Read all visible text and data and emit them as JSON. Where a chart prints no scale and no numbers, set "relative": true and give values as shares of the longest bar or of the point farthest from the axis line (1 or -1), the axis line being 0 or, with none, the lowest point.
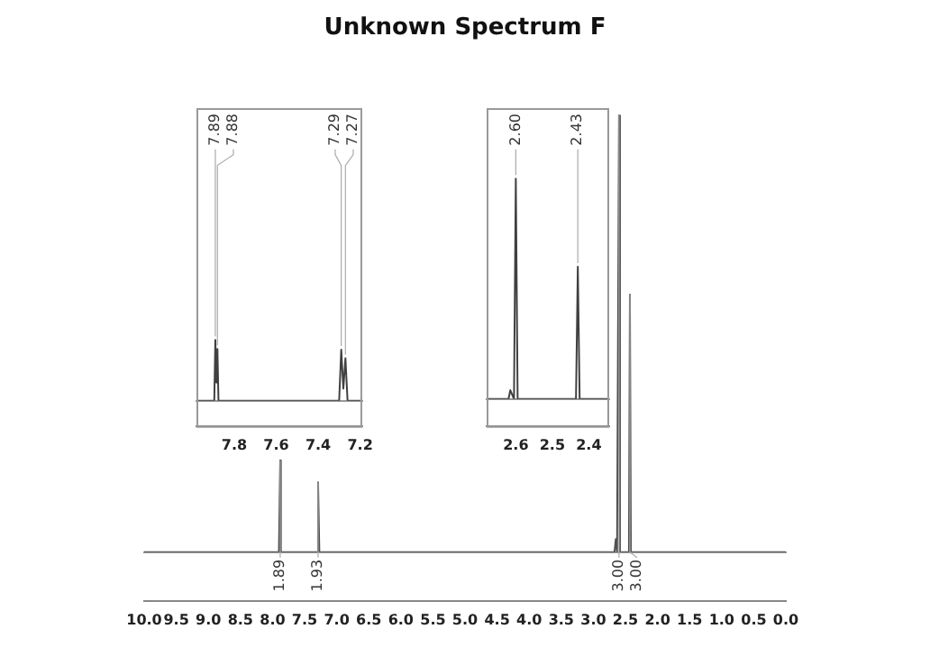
{
  "chart_data": [
    {
      "type": "line",
      "title": "Unknown Spectrum F",
      "relative": true,
      "xlim": [
        10,
        0
      ],
      "xticks": [
        {
          "value": 10,
          "label": "10.0"
        },
        {
          "value": 9.5,
          "label": "9.5"
        },
        {
          "value": 9,
          "label": "9.0"
        },
        {
          "value": 8.5,
          "label": "8.5"
        },
        {
          "value": 8,
          "label": "8.0"
        },
        {
          "value": 7.5,
          "label": "7.5"
        },
        {
          "value": 7,
          "label": "7.0"
        },
        {
          "value": 6.5,
          "label": "6.5"
        },
        {
          "value": 6,
          "label": "6.0"
        },
        {
          "value": 5.5,
          "label": "5.5"
        },
        {
          "value": 5,
          "label": "5.0"
        },
        {
          "value": 4.5,
          "label": "4.5"
        },
        {
          "value": 4,
          "label": "4.0"
        },
        {
          "value": 3.5,
          "label": "3.5"
        },
        {
          "value": 3,
          "label": "3.0"
        },
        {
          "value": 2.5,
          "label": "2.5"
        },
        {
          "value": 2,
          "label": "2.0"
        },
        {
          "value": 1.5,
          "label": "1.5"
        },
        {
          "value": 1,
          "label": "1.0"
        },
        {
          "value": 0.5,
          "label": "0.5"
        },
        {
          "value": 0,
          "label": "0.0"
        }
      ],
      "series": [
        {
          "color": "#505050",
          "x": [
            10,
            7.9,
            7.88,
            7.87,
            7.3,
            7.29,
            7.27,
            2.67,
            2.65,
            2.63,
            2.615,
            2.6,
            2.585,
            2.445,
            2.43,
            2.415,
            0
          ],
          "values": [
            0,
            0,
            0.21,
            0,
            0,
            0.16,
            0,
            0,
            0.03,
            0,
            0,
            1,
            0,
            0,
            0.59,
            0,
            0
          ]
        }
      ],
      "annotations": [
        {
          "text": "1.89",
          "x": 7.88,
          "y": 0.21
        },
        {
          "text": "1.93",
          "x": 7.29,
          "y": 0.16
        },
        {
          "text": "3.00",
          "x": 2.6,
          "y": 1
        },
        {
          "text": "3.00",
          "x": 2.43,
          "y": 0.59
        }
      ]
    },
    {
      "type": "line",
      "relative": true,
      "xlim": [
        7.98,
        7.19
      ],
      "xticks": [
        7.8,
        7.6,
        7.4,
        7.2
      ],
      "series": [
        {
          "color": "#404040",
          "x": [
            7.98,
            7.895,
            7.89,
            7.885,
            7.88,
            7.875,
            7.3,
            7.29,
            7.28,
            7.27,
            7.26,
            7.19
          ],
          "values": [
            0,
            0,
            1,
            0.3,
            0.85,
            0,
            0,
            0.84,
            0.2,
            0.7,
            0,
            0
          ]
        }
      ],
      "annotations": [
        {
          "text": "7.89",
          "x": 7.89,
          "y": 1
        },
        {
          "text": "7.88",
          "x": 7.88,
          "y": 0.85
        },
        {
          "text": "7.29",
          "x": 7.29,
          "y": 0.84
        },
        {
          "text": "7.27",
          "x": 7.27,
          "y": 0.7
        }
      ]
    },
    {
      "type": "line",
      "relative": true,
      "xlim": [
        2.68,
        2.344
      ],
      "xticks": [
        2.6,
        2.5,
        2.4
      ],
      "series": [
        {
          "color": "#404040",
          "x": [
            2.68,
            2.62,
            2.615,
            2.605,
            2.6,
            2.595,
            2.435,
            2.43,
            2.425,
            2.344
          ],
          "values": [
            0,
            0,
            0.04,
            0,
            1,
            0,
            0,
            0.6,
            0,
            0
          ]
        }
      ],
      "annotations": [
        {
          "text": "2.60",
          "x": 2.6,
          "y": 1
        },
        {
          "text": "2.43",
          "x": 2.43,
          "y": 0.6
        }
      ]
    }
  ]
}
